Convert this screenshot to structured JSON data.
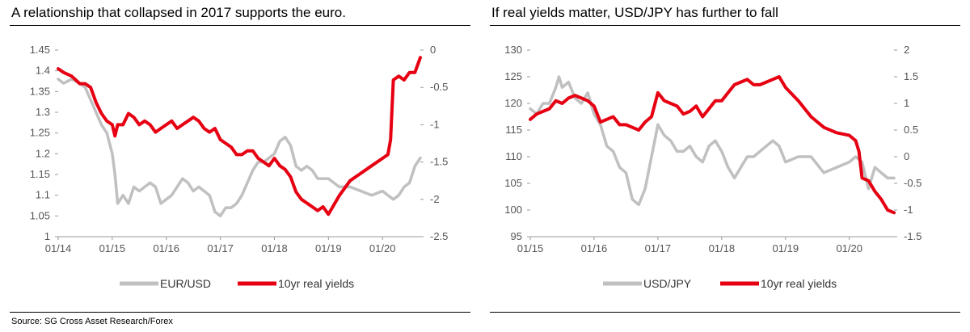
{
  "source": "Source: SG Cross Asset Research/Forex",
  "chart_data": [
    {
      "type": "line",
      "title": "A relationship that collapsed in 2017 supports the euro.",
      "x_ticks": [
        "01/14",
        "01/15",
        "01/16",
        "01/17",
        "01/18",
        "01/19",
        "01/20"
      ],
      "x_range": [
        2014.0,
        2020.7
      ],
      "left_axis": {
        "ticks": [
          "1",
          "1.05",
          "1.1",
          "1.15",
          "1.2",
          "1.25",
          "1.3",
          "1.35",
          "1.4",
          "1.45"
        ],
        "range": [
          1.0,
          1.45
        ]
      },
      "right_axis": {
        "ticks": [
          "0",
          "-0.5",
          "-1",
          "-1.5",
          "-2",
          "-2.5"
        ],
        "range": [
          -2.5,
          0.0
        ]
      },
      "legend": [
        "EUR/USD",
        "10yr real yields"
      ],
      "legend_position": "bottom",
      "series": [
        {
          "name": "EUR/USD",
          "axis": "left",
          "color": "#c0c0c0",
          "x": [
            2014.0,
            2014.1,
            2014.25,
            2014.4,
            2014.5,
            2014.6,
            2014.7,
            2014.8,
            2014.9,
            2015.0,
            2015.05,
            2015.1,
            2015.2,
            2015.3,
            2015.4,
            2015.5,
            2015.6,
            2015.7,
            2015.8,
            2015.9,
            2016.0,
            2016.1,
            2016.2,
            2016.3,
            2016.4,
            2016.5,
            2016.6,
            2016.7,
            2016.8,
            2016.9,
            2017.0,
            2017.1,
            2017.2,
            2017.3,
            2017.4,
            2017.5,
            2017.6,
            2017.7,
            2017.8,
            2017.9,
            2018.0,
            2018.1,
            2018.2,
            2018.3,
            2018.4,
            2018.5,
            2018.6,
            2018.7,
            2018.8,
            2018.9,
            2019.0,
            2019.2,
            2019.4,
            2019.6,
            2019.8,
            2020.0,
            2020.1,
            2020.2,
            2020.3,
            2020.4,
            2020.5,
            2020.6,
            2020.7
          ],
          "y": [
            1.38,
            1.37,
            1.38,
            1.37,
            1.36,
            1.33,
            1.3,
            1.27,
            1.25,
            1.2,
            1.15,
            1.08,
            1.1,
            1.08,
            1.12,
            1.11,
            1.12,
            1.13,
            1.12,
            1.08,
            1.09,
            1.1,
            1.12,
            1.14,
            1.13,
            1.11,
            1.12,
            1.11,
            1.1,
            1.06,
            1.05,
            1.07,
            1.07,
            1.08,
            1.1,
            1.13,
            1.16,
            1.18,
            1.18,
            1.19,
            1.2,
            1.23,
            1.24,
            1.22,
            1.17,
            1.16,
            1.17,
            1.16,
            1.14,
            1.14,
            1.14,
            1.12,
            1.12,
            1.11,
            1.1,
            1.11,
            1.1,
            1.09,
            1.1,
            1.12,
            1.13,
            1.17,
            1.19
          ]
        },
        {
          "name": "10yr real yields",
          "axis": "right",
          "color": "#e60012",
          "x": [
            2014.0,
            2014.1,
            2014.25,
            2014.4,
            2014.5,
            2014.6,
            2014.7,
            2014.8,
            2014.9,
            2015.0,
            2015.05,
            2015.1,
            2015.2,
            2015.3,
            2015.4,
            2015.5,
            2015.6,
            2015.7,
            2015.8,
            2015.9,
            2016.0,
            2016.1,
            2016.2,
            2016.3,
            2016.4,
            2016.5,
            2016.6,
            2016.7,
            2016.8,
            2016.9,
            2017.0,
            2017.1,
            2017.2,
            2017.3,
            2017.4,
            2017.5,
            2017.6,
            2017.7,
            2017.8,
            2017.9,
            2018.0,
            2018.1,
            2018.2,
            2018.3,
            2018.4,
            2018.5,
            2018.6,
            2018.7,
            2018.8,
            2018.9,
            2019.0,
            2019.2,
            2019.4,
            2019.6,
            2019.8,
            2020.0,
            2020.1,
            2020.15,
            2020.2,
            2020.3,
            2020.4,
            2020.5,
            2020.6,
            2020.7
          ],
          "y": [
            -0.25,
            -0.3,
            -0.35,
            -0.45,
            -0.45,
            -0.5,
            -0.7,
            -0.85,
            -0.95,
            -1.0,
            -1.15,
            -1.0,
            -1.0,
            -0.85,
            -0.9,
            -1.0,
            -0.95,
            -1.0,
            -1.1,
            -1.05,
            -1.0,
            -0.95,
            -1.05,
            -1.0,
            -0.95,
            -0.9,
            -0.95,
            -1.05,
            -1.1,
            -1.05,
            -1.2,
            -1.25,
            -1.3,
            -1.4,
            -1.4,
            -1.35,
            -1.35,
            -1.45,
            -1.5,
            -1.55,
            -1.45,
            -1.55,
            -1.6,
            -1.7,
            -1.9,
            -2.0,
            -2.05,
            -2.1,
            -2.15,
            -2.1,
            -2.2,
            -1.95,
            -1.75,
            -1.65,
            -1.55,
            -1.45,
            -1.4,
            -1.2,
            -0.4,
            -0.35,
            -0.4,
            -0.3,
            -0.3,
            -0.1
          ]
        }
      ]
    },
    {
      "type": "line",
      "title": "If real yields matter, USD/JPY has further to fall",
      "x_ticks": [
        "01/15",
        "01/16",
        "01/17",
        "01/18",
        "01/19",
        "01/20"
      ],
      "x_range": [
        2015.0,
        2020.7
      ],
      "left_axis": {
        "ticks": [
          "95",
          "100",
          "105",
          "110",
          "115",
          "120",
          "125",
          "130"
        ],
        "range": [
          95,
          130
        ]
      },
      "right_axis": {
        "ticks": [
          "2",
          "1.5",
          "1",
          "0.5",
          "0",
          "-0.5",
          "-1",
          "-1.5"
        ],
        "range": [
          -1.5,
          2.0
        ]
      },
      "legend": [
        "USD/JPY",
        "10yr real yields"
      ],
      "legend_position": "bottom",
      "series": [
        {
          "name": "USD/JPY",
          "axis": "left",
          "color": "#c0c0c0",
          "x": [
            2015.0,
            2015.1,
            2015.2,
            2015.3,
            2015.4,
            2015.45,
            2015.5,
            2015.6,
            2015.7,
            2015.8,
            2015.9,
            2016.0,
            2016.1,
            2016.2,
            2016.3,
            2016.4,
            2016.5,
            2016.6,
            2016.7,
            2016.8,
            2016.9,
            2017.0,
            2017.1,
            2017.2,
            2017.3,
            2017.4,
            2017.5,
            2017.6,
            2017.7,
            2017.8,
            2017.9,
            2018.0,
            2018.1,
            2018.2,
            2018.3,
            2018.4,
            2018.5,
            2018.6,
            2018.7,
            2018.8,
            2018.9,
            2019.0,
            2019.2,
            2019.4,
            2019.6,
            2019.8,
            2020.0,
            2020.1,
            2020.2,
            2020.3,
            2020.4,
            2020.5,
            2020.6,
            2020.7
          ],
          "y": [
            119,
            118,
            120,
            120,
            123,
            125,
            123,
            124,
            121,
            120,
            122,
            118,
            116,
            112,
            111,
            108,
            107,
            102,
            101,
            104,
            110,
            116,
            114,
            113,
            111,
            111,
            112,
            110,
            109,
            112,
            113,
            111,
            108,
            106,
            108,
            110,
            110,
            111,
            112,
            113,
            112,
            109,
            110,
            110,
            107,
            108,
            109,
            110,
            109,
            104,
            108,
            107,
            106,
            106
          ]
        },
        {
          "name": "10yr real yields",
          "axis": "right",
          "color": "#e60012",
          "x": [
            2015.0,
            2015.1,
            2015.2,
            2015.3,
            2015.4,
            2015.5,
            2015.6,
            2015.7,
            2015.8,
            2015.9,
            2016.0,
            2016.1,
            2016.2,
            2016.3,
            2016.4,
            2016.5,
            2016.6,
            2016.7,
            2016.8,
            2016.9,
            2017.0,
            2017.1,
            2017.2,
            2017.3,
            2017.4,
            2017.5,
            2017.6,
            2017.7,
            2017.8,
            2017.9,
            2018.0,
            2018.1,
            2018.2,
            2018.3,
            2018.4,
            2018.5,
            2018.6,
            2018.7,
            2018.8,
            2018.9,
            2019.0,
            2019.2,
            2019.4,
            2019.6,
            2019.8,
            2020.0,
            2020.1,
            2020.15,
            2020.2,
            2020.3,
            2020.4,
            2020.5,
            2020.6,
            2020.7
          ],
          "y": [
            0.7,
            0.8,
            0.85,
            0.9,
            1.05,
            1.0,
            1.1,
            1.15,
            1.1,
            1.05,
            0.95,
            0.65,
            0.7,
            0.75,
            0.6,
            0.6,
            0.55,
            0.5,
            0.65,
            0.75,
            1.2,
            1.05,
            1.0,
            0.95,
            0.8,
            0.85,
            0.95,
            0.75,
            0.9,
            1.05,
            1.05,
            1.2,
            1.35,
            1.4,
            1.45,
            1.35,
            1.35,
            1.4,
            1.45,
            1.5,
            1.3,
            1.05,
            0.75,
            0.55,
            0.45,
            0.4,
            0.3,
            0.1,
            -0.4,
            -0.45,
            -0.65,
            -0.8,
            -1.0,
            -1.05
          ]
        }
      ]
    }
  ]
}
